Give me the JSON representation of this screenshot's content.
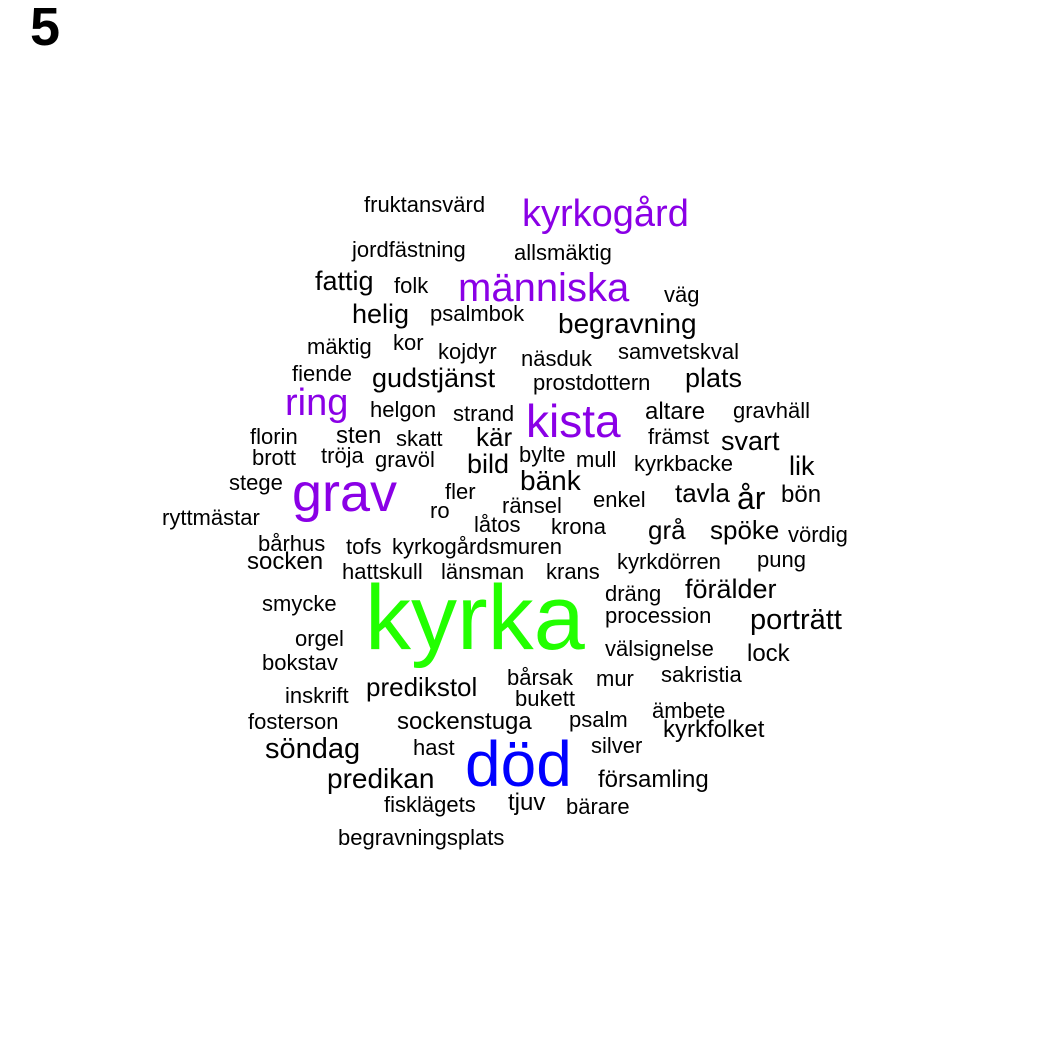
{
  "panel_label": "5",
  "colors": {
    "default": "#000000",
    "purple": "#8a00e6",
    "green": "#22ff00",
    "blue": "#0000ff"
  },
  "words": [
    {
      "text": "kyrka",
      "color": "green"
    },
    {
      "text": "död",
      "color": "blue"
    },
    {
      "text": "grav",
      "color": "purple"
    },
    {
      "text": "kista",
      "color": "purple"
    },
    {
      "text": "människa",
      "color": "purple"
    },
    {
      "text": "kyrkogård",
      "color": "purple"
    },
    {
      "text": "ring",
      "color": "purple"
    },
    {
      "text": "fruktansvärd"
    },
    {
      "text": "jordfästning"
    },
    {
      "text": "allsmäktig"
    },
    {
      "text": "fattig"
    },
    {
      "text": "folk"
    },
    {
      "text": "väg"
    },
    {
      "text": "helig"
    },
    {
      "text": "psalmbok"
    },
    {
      "text": "begravning"
    },
    {
      "text": "mäktig"
    },
    {
      "text": "kor"
    },
    {
      "text": "kojdyr"
    },
    {
      "text": "näsduk"
    },
    {
      "text": "samvetskval"
    },
    {
      "text": "fiende"
    },
    {
      "text": "gudstjänst"
    },
    {
      "text": "prostdottern"
    },
    {
      "text": "plats"
    },
    {
      "text": "helgon"
    },
    {
      "text": "strand"
    },
    {
      "text": "altare"
    },
    {
      "text": "gravhäll"
    },
    {
      "text": "florin"
    },
    {
      "text": "sten"
    },
    {
      "text": "skatt"
    },
    {
      "text": "kär"
    },
    {
      "text": "främst"
    },
    {
      "text": "svart"
    },
    {
      "text": "brott"
    },
    {
      "text": "tröja"
    },
    {
      "text": "gravöl"
    },
    {
      "text": "bylte"
    },
    {
      "text": "mull"
    },
    {
      "text": "kyrkbacke"
    },
    {
      "text": "bild"
    },
    {
      "text": "lik"
    },
    {
      "text": "stege"
    },
    {
      "text": "bänk"
    },
    {
      "text": "fler"
    },
    {
      "text": "tavla"
    },
    {
      "text": "år"
    },
    {
      "text": "bön"
    },
    {
      "text": "ryttmästar"
    },
    {
      "text": "ro"
    },
    {
      "text": "ränsel"
    },
    {
      "text": "enkel"
    },
    {
      "text": "låtos"
    },
    {
      "text": "krona"
    },
    {
      "text": "grå"
    },
    {
      "text": "spöke"
    },
    {
      "text": "vördig"
    },
    {
      "text": "bårhus"
    },
    {
      "text": "tofs"
    },
    {
      "text": "kyrkogårdsmuren"
    },
    {
      "text": "socken"
    },
    {
      "text": "kyrkdörren"
    },
    {
      "text": "pung"
    },
    {
      "text": "hattskull"
    },
    {
      "text": "länsman"
    },
    {
      "text": "krans"
    },
    {
      "text": "dräng"
    },
    {
      "text": "förälder"
    },
    {
      "text": "smycke"
    },
    {
      "text": "procession"
    },
    {
      "text": "porträtt"
    },
    {
      "text": "orgel"
    },
    {
      "text": "välsignelse"
    },
    {
      "text": "lock"
    },
    {
      "text": "bokstav"
    },
    {
      "text": "bårsak"
    },
    {
      "text": "mur"
    },
    {
      "text": "sakristia"
    },
    {
      "text": "predikstol"
    },
    {
      "text": "inskrift"
    },
    {
      "text": "bukett"
    },
    {
      "text": "ämbete"
    },
    {
      "text": "fosterson"
    },
    {
      "text": "sockenstuga"
    },
    {
      "text": "psalm"
    },
    {
      "text": "kyrkfolket"
    },
    {
      "text": "söndag"
    },
    {
      "text": "hast"
    },
    {
      "text": "silver"
    },
    {
      "text": "predikan"
    },
    {
      "text": "församling"
    },
    {
      "text": "fisklägets"
    },
    {
      "text": "tjuv"
    },
    {
      "text": "bärare"
    },
    {
      "text": "begravningsplats"
    }
  ]
}
